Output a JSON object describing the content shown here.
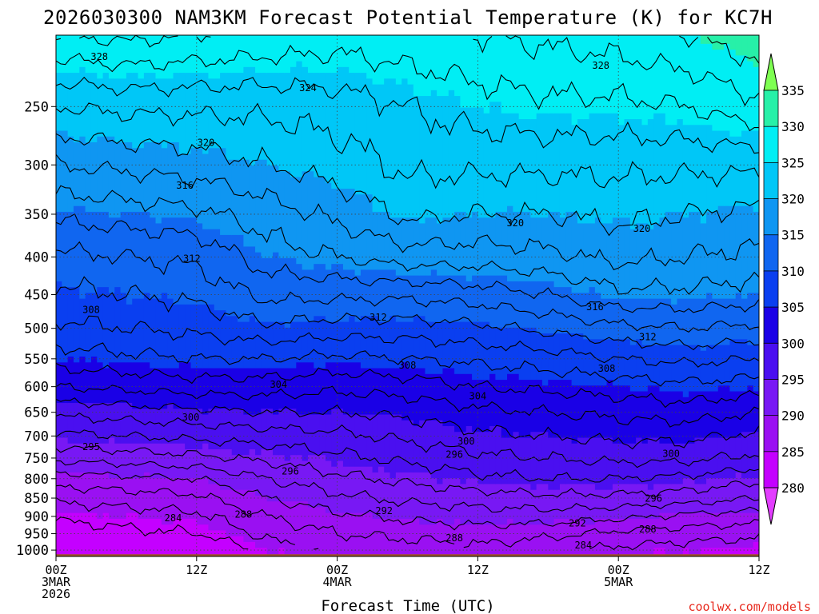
{
  "chart_data": {
    "type": "heatmap",
    "title": "2026030300 NAM3KM Forecast Potential Temperature (K) for KC7H",
    "xlabel": "Forecast Time (UTC)",
    "ylabel": "",
    "x_ticks": [
      {
        "hour": 0,
        "line1": "00Z",
        "line2": "3MAR",
        "line3": "2026"
      },
      {
        "hour": 12,
        "line1": "12Z",
        "line2": "",
        "line3": ""
      },
      {
        "hour": 24,
        "line1": "00Z",
        "line2": "4MAR",
        "line3": ""
      },
      {
        "hour": 36,
        "line1": "12Z",
        "line2": "",
        "line3": ""
      },
      {
        "hour": 48,
        "line1": "00Z",
        "line2": "5MAR",
        "line3": ""
      },
      {
        "hour": 60,
        "line1": "12Z",
        "line2": "",
        "line3": ""
      }
    ],
    "xlim": [
      0,
      60
    ],
    "y_ticks": [
      250,
      300,
      350,
      400,
      450,
      500,
      550,
      600,
      650,
      700,
      750,
      800,
      850,
      900,
      950,
      1000
    ],
    "ylim_hpa": [
      200,
      1020
    ],
    "surface_pressure_hpa": 1013,
    "colorbar": {
      "levels": [
        280,
        285,
        290,
        295,
        300,
        305,
        310,
        315,
        320,
        325,
        330,
        335
      ],
      "colors": [
        "#c400ff",
        "#9a10f2",
        "#7818f4",
        "#4a0ff0",
        "#1a00e6",
        "#0a3ff0",
        "#1066f0",
        "#0f96f2",
        "#00c7f7",
        "#00eef4",
        "#27f0a8",
        "#2ce03a",
        "#7eff52"
      ],
      "over_color": "#7eff52",
      "under_color": "#e23dff"
    },
    "isotherm_levels": [
      284,
      286,
      288,
      290,
      292,
      294,
      296,
      298,
      300,
      302,
      304,
      306,
      308,
      310,
      312,
      314,
      316,
      318,
      320,
      322,
      324,
      326,
      328,
      330
    ],
    "field": {
      "hours": [
        0,
        6,
        12,
        18,
        24,
        30,
        36,
        42,
        48,
        54,
        60
      ],
      "pressure_levels_hpa": [
        1000,
        950,
        900,
        850,
        800,
        750,
        700,
        650,
        600,
        550,
        500,
        450,
        400,
        350,
        300,
        250,
        200
      ],
      "theta_k": [
        [
          280.5,
          281.5,
          281.0,
          285.0,
          286.5,
          287.0,
          287.5,
          286.5,
          285.5,
          285.0,
          284.5
        ],
        [
          282.5,
          283.5,
          284.0,
          286.5,
          288.0,
          288.5,
          289.0,
          288.5,
          287.5,
          287.0,
          286.5
        ],
        [
          284.5,
          285.0,
          285.5,
          288.0,
          289.5,
          290.5,
          291.0,
          291.0,
          290.5,
          289.5,
          289.0
        ],
        [
          286.5,
          287.0,
          287.5,
          290.0,
          291.5,
          292.5,
          293.0,
          293.5,
          293.5,
          293.0,
          292.0
        ],
        [
          289.0,
          289.5,
          290.0,
          292.0,
          293.5,
          294.5,
          295.5,
          296.0,
          296.0,
          295.5,
          294.5
        ],
        [
          292.5,
          293.0,
          293.5,
          294.5,
          295.5,
          296.5,
          297.5,
          298.0,
          298.5,
          298.5,
          297.5
        ],
        [
          295.5,
          296.0,
          296.5,
          297.0,
          297.5,
          298.5,
          299.5,
          300.0,
          300.5,
          300.5,
          299.5
        ],
        [
          298.5,
          299.0,
          299.5,
          300.0,
          300.0,
          300.5,
          301.5,
          302.0,
          302.5,
          303.0,
          302.0
        ],
        [
          302.0,
          302.5,
          303.0,
          303.0,
          302.5,
          303.0,
          304.0,
          304.5,
          305.0,
          305.5,
          305.0
        ],
        [
          305.0,
          305.5,
          306.0,
          306.0,
          305.5,
          306.0,
          306.5,
          307.0,
          308.0,
          308.5,
          308.0
        ],
        [
          307.5,
          308.0,
          308.5,
          309.5,
          309.0,
          309.0,
          309.5,
          310.5,
          311.5,
          312.0,
          311.5
        ],
        [
          309.5,
          310.0,
          310.5,
          312.5,
          312.5,
          312.5,
          313.0,
          314.0,
          315.5,
          315.5,
          315.0
        ],
        [
          311.5,
          312.0,
          312.5,
          315.0,
          316.0,
          317.0,
          317.0,
          317.5,
          318.5,
          318.0,
          317.5
        ],
        [
          314.5,
          315.0,
          315.5,
          317.0,
          318.5,
          320.5,
          320.0,
          320.0,
          320.5,
          320.0,
          319.5
        ],
        [
          318.0,
          318.5,
          319.0,
          320.0,
          321.0,
          322.5,
          322.5,
          322.5,
          322.5,
          322.5,
          322.5
        ],
        [
          322.0,
          322.5,
          322.5,
          322.5,
          323.0,
          324.0,
          325.0,
          325.5,
          325.5,
          326.0,
          327.5
        ],
        [
          328.0,
          328.5,
          328.0,
          327.5,
          327.0,
          327.5,
          328.0,
          328.5,
          329.0,
          330.0,
          331.5
        ]
      ]
    },
    "contour_labels": [
      {
        "text": "328",
        "hour": 3.7,
        "p": 214
      },
      {
        "text": "328",
        "hour": 46.5,
        "p": 220
      },
      {
        "text": "324",
        "hour": 21.5,
        "p": 236
      },
      {
        "text": "320",
        "hour": 12.8,
        "p": 280
      },
      {
        "text": "316",
        "hour": 11.0,
        "p": 320
      },
      {
        "text": "320",
        "hour": 39.2,
        "p": 360
      },
      {
        "text": "320",
        "hour": 50.0,
        "p": 366
      },
      {
        "text": "312",
        "hour": 11.6,
        "p": 402
      },
      {
        "text": "308",
        "hour": 3.0,
        "p": 472
      },
      {
        "text": "312",
        "hour": 27.5,
        "p": 483
      },
      {
        "text": "316",
        "hour": 46.0,
        "p": 468
      },
      {
        "text": "312",
        "hour": 50.5,
        "p": 514
      },
      {
        "text": "308",
        "hour": 30.0,
        "p": 561
      },
      {
        "text": "308",
        "hour": 47.0,
        "p": 567
      },
      {
        "text": "304",
        "hour": 19.0,
        "p": 596
      },
      {
        "text": "304",
        "hour": 36.0,
        "p": 618
      },
      {
        "text": "300",
        "hour": 11.5,
        "p": 660
      },
      {
        "text": "300",
        "hour": 35.0,
        "p": 712
      },
      {
        "text": "295",
        "hour": 3.0,
        "p": 724
      },
      {
        "text": "296",
        "hour": 34.0,
        "p": 742
      },
      {
        "text": "300",
        "hour": 52.5,
        "p": 740
      },
      {
        "text": "296",
        "hour": 20.0,
        "p": 782
      },
      {
        "text": "296",
        "hour": 51.0,
        "p": 851
      },
      {
        "text": "292",
        "hour": 28.0,
        "p": 885
      },
      {
        "text": "288",
        "hour": 16.0,
        "p": 895
      },
      {
        "text": "284",
        "hour": 10.0,
        "p": 905
      },
      {
        "text": "292",
        "hour": 44.5,
        "p": 920
      },
      {
        "text": "288",
        "hour": 50.5,
        "p": 937
      },
      {
        "text": "288",
        "hour": 34.0,
        "p": 963
      },
      {
        "text": "284",
        "hour": 45.0,
        "p": 985
      }
    ]
  },
  "credit": "coolwx.com/models"
}
